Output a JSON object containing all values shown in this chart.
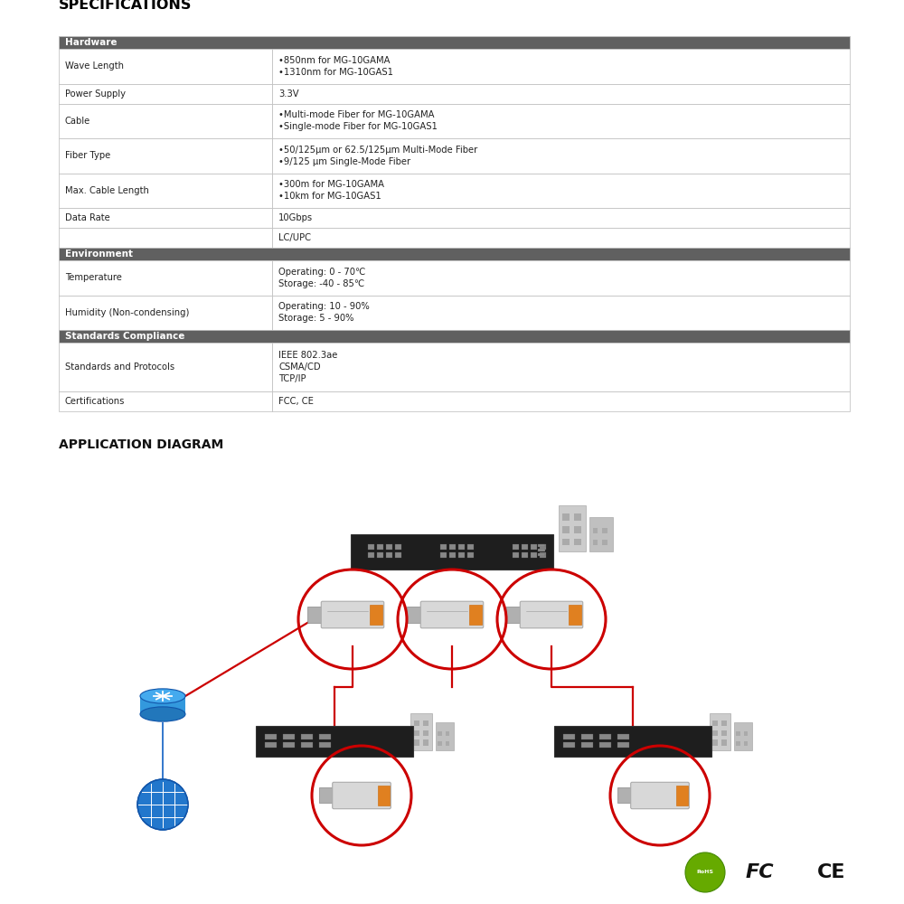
{
  "title_specs": "SPECIFICATIONS",
  "title_app": "APPLICATION DIAGRAM",
  "background_color": "#ffffff",
  "table_border_color": "#bbbbbb",
  "header_bg": "#606060",
  "header_fg": "#ffffff",
  "col_split": 0.27,
  "table_sections": [
    {
      "type": "header",
      "label": "Hardware",
      "lines": 1
    },
    {
      "type": "row",
      "col1": "Wave Length",
      "col2": "•850nm for MG-10GAMA\n•1310nm for MG-10GAS1",
      "lines": 2
    },
    {
      "type": "row",
      "col1": "Power Supply",
      "col2": "3.3V",
      "lines": 1
    },
    {
      "type": "row",
      "col1": "Cable",
      "col2": "•Multi-mode Fiber for MG-10GAMA\n•Single-mode Fiber for MG-10GAS1",
      "lines": 2
    },
    {
      "type": "row",
      "col1": "Fiber Type",
      "col2": "•50/125μm or 62.5/125μm Multi-Mode Fiber\n•9/125 μm Single-Mode Fiber",
      "lines": 2
    },
    {
      "type": "row",
      "col1": "Max. Cable Length",
      "col2": "•300m for MG-10GAMA\n•10km for MG-10GAS1",
      "lines": 2
    },
    {
      "type": "row",
      "col1": "Data Rate",
      "col2": "10Gbps",
      "lines": 1
    },
    {
      "type": "row",
      "col1": "",
      "col2": "LC/UPC",
      "lines": 1
    },
    {
      "type": "header",
      "label": "Environment",
      "lines": 1
    },
    {
      "type": "row",
      "col1": "Temperature",
      "col2": "Operating: 0 - 70℃\nStorage: -40 - 85℃",
      "lines": 2
    },
    {
      "type": "row",
      "col1": "Humidity (Non-condensing)",
      "col2": "Operating: 10 - 90%\nStorage: 5 - 90%",
      "lines": 2
    },
    {
      "type": "header",
      "label": "Standards Compliance",
      "lines": 1
    },
    {
      "type": "row",
      "col1": "Standards and Protocols",
      "col2": "IEEE 802.3ae\nCSMA/CD\nTCP/IP",
      "lines": 3
    },
    {
      "type": "row",
      "col1": "Certifications",
      "col2": "FCC, CE",
      "lines": 1
    }
  ],
  "red_line_color": "#cc0000",
  "blue_line_color": "#3377cc",
  "switch_color": "#2a2a2a",
  "sfp_body_color": "#d0d0d0",
  "sfp_orange_color": "#e08020",
  "sfp_conn_color": "#aaaaaa",
  "hub_color": "#3399dd",
  "globe_color": "#2277cc",
  "building_color": "#cccccc",
  "building_window_color": "#999999"
}
